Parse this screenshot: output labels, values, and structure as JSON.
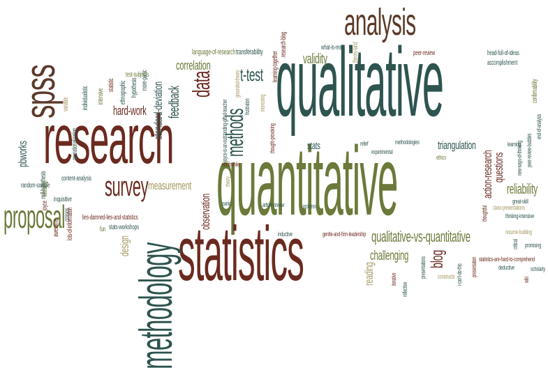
{
  "word_cloud": {
    "palette": {
      "teal": "#2e5450",
      "red_brown": "#6b2a1f",
      "olive": "#6b7a3a",
      "khaki": "#a59a62",
      "brown": "#5c3a2a"
    },
    "words": [
      {
        "text": "qualitative",
        "color": "teal"
      },
      {
        "text": "quantitative",
        "color": "olive"
      },
      {
        "text": "statistics",
        "color": "red_brown"
      },
      {
        "text": "research",
        "color": "red_brown"
      },
      {
        "text": "methodology",
        "color": "teal"
      },
      {
        "text": "analysis",
        "color": "brown"
      },
      {
        "text": "spss",
        "color": "brown"
      },
      {
        "text": "survey",
        "color": "red_brown"
      },
      {
        "text": "proposal",
        "color": "olive"
      },
      {
        "text": "data",
        "color": "red_brown"
      },
      {
        "text": "methods",
        "color": "teal"
      },
      {
        "text": "t-test",
        "color": "teal"
      },
      {
        "text": "correlation",
        "color": "olive"
      },
      {
        "text": "standard-deviation",
        "color": "teal"
      },
      {
        "text": "feedback",
        "color": "teal"
      },
      {
        "text": "hard-work",
        "color": "red_brown"
      },
      {
        "text": "measurement",
        "color": "khaki"
      },
      {
        "text": "validity",
        "color": "olive"
      },
      {
        "text": "stats",
        "color": "teal"
      },
      {
        "text": "triangulation",
        "color": "teal"
      },
      {
        "text": "questions",
        "color": "red_brown"
      },
      {
        "text": "action-research",
        "color": "red_brown"
      },
      {
        "text": "reliability",
        "color": "olive"
      },
      {
        "text": "qualitative-vs-quantitative",
        "color": "olive"
      },
      {
        "text": "challenging",
        "color": "olive"
      },
      {
        "text": "reading",
        "color": "khaki"
      },
      {
        "text": "blog",
        "color": "red_brown"
      },
      {
        "text": "design",
        "color": "khaki"
      },
      {
        "text": "observation",
        "color": "red_brown"
      },
      {
        "text": "pbworks",
        "color": "teal"
      },
      {
        "text": "language-of-research",
        "color": "olive"
      },
      {
        "text": "transferability",
        "color": "teal"
      },
      {
        "text": "research-blog",
        "color": "red_brown"
      },
      {
        "text": "what-is-real",
        "color": "teal"
      },
      {
        "text": "learning-together",
        "color": "red_brown"
      },
      {
        "text": "theory-land",
        "color": "khaki"
      },
      {
        "text": "peer-review",
        "color": "red_brown"
      },
      {
        "text": "head-full-of-ideas",
        "color": "teal"
      },
      {
        "text": "accomplishment",
        "color": "teal"
      },
      {
        "text": "confirmability",
        "color": "olive"
      },
      {
        "text": "test-subjects",
        "color": "olive"
      },
      {
        "text": "statistic",
        "color": "red_brown"
      },
      {
        "text": "ethnographic",
        "color": "teal"
      },
      {
        "text": "hypothesis",
        "color": "teal"
      },
      {
        "text": "more-panic",
        "color": "teal"
      },
      {
        "text": "intensive",
        "color": "olive"
      },
      {
        "text": "individualistic",
        "color": "teal"
      },
      {
        "text": "operationalization",
        "color": "teal"
      },
      {
        "text": "variable",
        "color": "khaki"
      },
      {
        "text": "null-hypothesis",
        "color": "teal"
      },
      {
        "text": "content-analysis",
        "color": "teal"
      },
      {
        "text": "random-sample",
        "color": "teal"
      },
      {
        "text": "listening",
        "color": "olive"
      },
      {
        "text": "inquisitive",
        "color": "teal"
      },
      {
        "text": "joyce",
        "color": "red_brown"
      },
      {
        "text": "awesome",
        "color": "red_brown"
      },
      {
        "text": "cmmos",
        "color": "teal"
      },
      {
        "text": "lots-of-information",
        "color": "red_brown"
      },
      {
        "text": "lies-damned-lies-and-statistics",
        "color": "red_brown"
      },
      {
        "text": "stats-workshops",
        "color": "teal"
      },
      {
        "text": "fun",
        "color": "olive"
      },
      {
        "text": "joyce-is-an-outstanding-gifted-teacher",
        "color": "teal"
      },
      {
        "text": "grounded-theory",
        "color": "khaki"
      },
      {
        "text": "frustration",
        "color": "teal"
      },
      {
        "text": "interesting",
        "color": "khaki"
      },
      {
        "text": "thought-provoking",
        "color": "red_brown"
      },
      {
        "text": "worthwhile",
        "color": "red_brown"
      },
      {
        "text": "theory",
        "color": "khaki"
      },
      {
        "text": "panic",
        "color": "teal"
      },
      {
        "text": "article-review",
        "color": "teal"
      },
      {
        "text": "process",
        "color": "teal"
      },
      {
        "text": "inductive",
        "color": "teal"
      },
      {
        "text": "gentle-and-firm-leadership",
        "color": "red_brown"
      },
      {
        "text": "relief",
        "color": "teal"
      },
      {
        "text": "experimental",
        "color": "teal"
      },
      {
        "text": "methodologies",
        "color": "teal"
      },
      {
        "text": "ethics",
        "color": "olive"
      },
      {
        "text": "learning",
        "color": "teal"
      },
      {
        "text": "new-ways-of-thinking",
        "color": "teal"
      },
      {
        "text": "peer-review-buddies",
        "color": "teal"
      },
      {
        "text": "end-of-analysis",
        "color": "teal"
      },
      {
        "text": "great-skill",
        "color": "teal"
      },
      {
        "text": "thoughtful",
        "color": "red_brown"
      },
      {
        "text": "class-presentations",
        "color": "khaki"
      },
      {
        "text": "thinking-intensive",
        "color": "teal"
      },
      {
        "text": "resume-building",
        "color": "khaki"
      },
      {
        "text": "critical",
        "color": "teal"
      },
      {
        "text": "promising",
        "color": "teal"
      },
      {
        "text": "scholarly",
        "color": "teal"
      },
      {
        "text": "wiki",
        "color": "red_brown"
      },
      {
        "text": "deductive",
        "color": "teal"
      },
      {
        "text": "statistics-are-hard-to-comprehend",
        "color": "red_brown"
      },
      {
        "text": "presentation",
        "color": "red_brown"
      },
      {
        "text": "i-can't-do-this",
        "color": "teal"
      },
      {
        "text": "constructs",
        "color": "khaki"
      },
      {
        "text": "presentations",
        "color": "teal"
      },
      {
        "text": "reflective",
        "color": "teal"
      },
      {
        "text": "iterative",
        "color": "red_brown"
      }
    ]
  }
}
